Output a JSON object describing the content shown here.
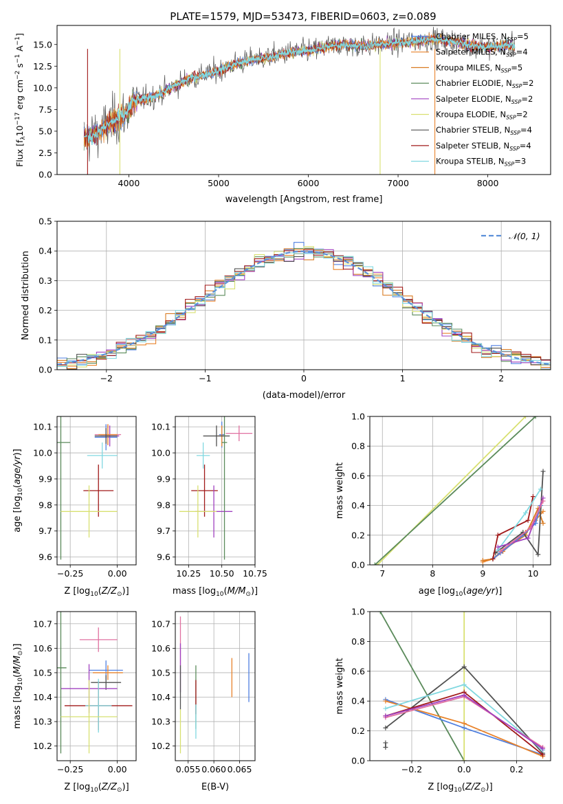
{
  "figure": {
    "title": "PLATE=1579, MJD=53473, FIBERID=0603, z=0.089"
  },
  "legend_entries": [
    {
      "label": "Chabrier MILES, N",
      "nssp": "5",
      "color": "#4f7fe0"
    },
    {
      "label": "Salpeter MILES, N",
      "nssp": "4",
      "color": "#e8822a"
    },
    {
      "label": "Kroupa MILES, N",
      "nssp": "5",
      "color": "#d97a20"
    },
    {
      "label": "Chabrier ELODIE, N",
      "nssp": "2",
      "color": "#5a8a5a"
    },
    {
      "label": "Salpeter ELODIE, N",
      "nssp": "2",
      "color": "#a040c0"
    },
    {
      "label": "Kroupa ELODIE, N",
      "nssp": "2",
      "color": "#d8e070"
    },
    {
      "label": "Chabrier STELIB, N",
      "nssp": "4",
      "color": "#505050"
    },
    {
      "label": "Salpeter STELIB, N",
      "nssp": "4",
      "color": "#a01818"
    },
    {
      "label": "Kroupa STELIB, N",
      "nssp": "3",
      "color": "#80d8e0"
    }
  ],
  "nssp_sub": "SSP",
  "hist_legend": "𝒩(0, 1)",
  "chart_data": [
    {
      "id": "spectrum",
      "type": "line",
      "xlabel": "wavelength [Angstrom, rest frame]",
      "ylabel": "Flux [f",
      "xlim": [
        3200,
        8700
      ],
      "ylim": [
        0,
        17.2
      ],
      "xticks": [
        4000,
        5000,
        6000,
        7000,
        8000
      ],
      "yticks": [
        0.0,
        2.5,
        5.0,
        7.5,
        10.0,
        12.5,
        15.0
      ],
      "knots": [
        [
          3500,
          4.1
        ],
        [
          3650,
          4.8
        ],
        [
          3800,
          6.0
        ],
        [
          3950,
          6.8
        ],
        [
          4050,
          8.5
        ],
        [
          4200,
          8.8
        ],
        [
          4350,
          9.3
        ],
        [
          4500,
          10.2
        ],
        [
          4700,
          11.2
        ],
        [
          4850,
          11.5
        ],
        [
          5000,
          12.0
        ],
        [
          5200,
          12.8
        ],
        [
          5400,
          13.3
        ],
        [
          5600,
          13.6
        ],
        [
          5800,
          14.1
        ],
        [
          6000,
          14.3
        ],
        [
          6200,
          14.7
        ],
        [
          6400,
          15.0
        ],
        [
          6600,
          14.8
        ],
        [
          6800,
          15.0
        ],
        [
          7000,
          15.2
        ],
        [
          7200,
          15.4
        ],
        [
          7400,
          15.6
        ],
        [
          7600,
          15.4
        ],
        [
          7800,
          14.9
        ],
        [
          8000,
          14.7
        ],
        [
          8200,
          14.9
        ],
        [
          8300,
          14.8
        ]
      ]
    },
    {
      "id": "residual_histogram",
      "type": "bar",
      "xlabel": "(data-model)/error",
      "ylabel": "Normed distribution",
      "xlim": [
        -2.5,
        2.5
      ],
      "ylim": [
        0,
        0.5
      ],
      "xticks": [
        -2,
        -1,
        0,
        1,
        2
      ],
      "yticks": [
        0.0,
        0.1,
        0.2,
        0.3,
        0.4,
        0.5
      ],
      "bin_width": 0.1,
      "gaussian": {
        "mean": 0,
        "sigma": 1
      }
    },
    {
      "id": "age_vs_Z",
      "type": "scatter",
      "xlabel": "Z [log",
      "ylabel": "age  [log",
      "xlim": [
        -0.32,
        0.1
      ],
      "ylim": [
        9.57,
        10.14
      ],
      "xticks": [
        -0.25,
        0.0
      ],
      "yticks": [
        9.6,
        9.7,
        9.8,
        9.9,
        10.0,
        10.1
      ],
      "points": [
        {
          "x": -0.05,
          "y": 10.07,
          "xerr": 0.07,
          "yerr": 0.04,
          "color": "#e070a0"
        },
        {
          "x": -0.06,
          "y": 10.06,
          "xerr": 0.06,
          "yerr": 0.05,
          "color": "#4f7fe0"
        },
        {
          "x": -0.04,
          "y": 10.065,
          "xerr": 0.05,
          "yerr": 0.04,
          "color": "#a040c0"
        },
        {
          "x": -0.05,
          "y": 10.07,
          "xerr": 0.05,
          "yerr": 0.04,
          "color": "#e8822a"
        },
        {
          "x": -0.06,
          "y": 10.065,
          "xerr": 0.06,
          "yerr": 0.03,
          "color": "#505050"
        },
        {
          "x": -0.08,
          "y": 9.99,
          "xerr": 0.08,
          "yerr": 0.05,
          "color": "#80d8e0"
        },
        {
          "x": -0.1,
          "y": 9.855,
          "xerr": 0.08,
          "yerr": 0.1,
          "color": "#a01818"
        },
        {
          "x": -0.3,
          "y": 10.04,
          "xerr": 0.05,
          "yerr": 0.45,
          "color": "#5a8a5a"
        },
        {
          "x": -0.15,
          "y": 9.775,
          "xerr": 0.15,
          "yerr": 0.1,
          "color": "#d8e070"
        }
      ]
    },
    {
      "id": "age_vs_mass",
      "type": "scatter",
      "xlabel": "mass [log",
      "ylabel": "",
      "xlim": [
        10.15,
        10.75
      ],
      "ylim": [
        9.57,
        10.14
      ],
      "xticks": [
        10.25,
        10.5,
        10.75
      ],
      "yticks": [
        9.6,
        9.7,
        9.8,
        9.9,
        10.0,
        10.1
      ],
      "points": [
        {
          "x": 10.63,
          "y": 10.075,
          "xerr": 0.1,
          "yerr": 0.03,
          "color": "#e070a0"
        },
        {
          "x": 10.5,
          "y": 10.07,
          "xerr": 0.02,
          "yerr": 0.05,
          "color": "#4f7fe0"
        },
        {
          "x": 10.5,
          "y": 10.065,
          "xerr": 0.03,
          "yerr": 0.04,
          "color": "#e8822a"
        },
        {
          "x": 10.46,
          "y": 10.065,
          "xerr": 0.1,
          "yerr": 0.04,
          "color": "#505050"
        },
        {
          "x": 10.36,
          "y": 9.99,
          "xerr": 0.05,
          "yerr": 0.05,
          "color": "#80d8e0"
        },
        {
          "x": 10.37,
          "y": 9.855,
          "xerr": 0.1,
          "yerr": 0.1,
          "color": "#a01818"
        },
        {
          "x": 10.44,
          "y": 9.775,
          "xerr": 0.14,
          "yerr": 0.1,
          "color": "#a040c0"
        },
        {
          "x": 10.32,
          "y": 9.775,
          "xerr": 0.14,
          "yerr": 0.1,
          "color": "#d8e070"
        },
        {
          "x": 10.52,
          "y": 10.04,
          "xerr": 0.02,
          "yerr": 0.45,
          "color": "#5a8a5a"
        }
      ]
    },
    {
      "id": "mass_weight_vs_age",
      "type": "line",
      "xlabel": "age  [log",
      "ylabel": "mass weight",
      "xlim": [
        6.75,
        10.35
      ],
      "ylim": [
        0,
        1.0
      ],
      "xticks": [
        7,
        8,
        9,
        10
      ],
      "yticks": [
        0.0,
        0.2,
        0.4,
        0.6,
        0.8,
        1.0
      ],
      "series": [
        {
          "color": "#d8e070",
          "x": [
            6.9,
            9.85
          ],
          "y": [
            0.0,
            1.0
          ]
        },
        {
          "color": "#5a8a5a",
          "x": [
            6.85,
            10.05
          ],
          "y": [
            0.0,
            1.0
          ]
        },
        {
          "color": "#e8822a",
          "x": [
            9.0,
            9.2,
            9.4,
            9.85,
            10.05,
            10.2
          ],
          "y": [
            0.02,
            0.04,
            0.09,
            0.22,
            0.3,
            0.36
          ]
        },
        {
          "color": "#d97a20",
          "x": [
            9.0,
            9.2,
            9.4,
            9.85,
            10.1,
            10.2
          ],
          "y": [
            0.03,
            0.04,
            0.1,
            0.2,
            0.38,
            0.28
          ]
        },
        {
          "color": "#4f7fe0",
          "x": [
            9.2,
            9.35,
            9.8,
            10.05,
            10.15
          ],
          "y": [
            0.04,
            0.08,
            0.2,
            0.28,
            0.4
          ]
        },
        {
          "color": "#505050",
          "x": [
            9.25,
            9.8,
            10.1,
            10.2
          ],
          "y": [
            0.08,
            0.22,
            0.07,
            0.63
          ]
        },
        {
          "color": "#a01818",
          "x": [
            9.2,
            9.3,
            9.9,
            10.0
          ],
          "y": [
            0.04,
            0.2,
            0.3,
            0.46
          ]
        },
        {
          "color": "#80d8e0",
          "x": [
            9.3,
            9.85,
            10.15
          ],
          "y": [
            0.1,
            0.35,
            0.51
          ]
        },
        {
          "color": "#a040c0",
          "x": [
            9.3,
            9.9,
            10.2
          ],
          "y": [
            0.12,
            0.18,
            0.45
          ]
        },
        {
          "color": "#e070a0",
          "x": [
            9.35,
            9.95,
            10.2
          ],
          "y": [
            0.09,
            0.25,
            0.43
          ]
        }
      ]
    },
    {
      "id": "mass_vs_Z",
      "type": "scatter",
      "xlabel": "Z [log",
      "ylabel": "mass [log",
      "xlim": [
        -0.32,
        0.1
      ],
      "ylim": [
        10.14,
        10.75
      ],
      "xticks": [
        -0.25,
        0.0
      ],
      "yticks": [
        10.2,
        10.3,
        10.4,
        10.5,
        10.6,
        10.7
      ],
      "points": [
        {
          "x": -0.1,
          "y": 10.635,
          "xerr": 0.1,
          "yerr": 0.05,
          "color": "#e070a0"
        },
        {
          "x": -0.06,
          "y": 10.51,
          "xerr": 0.09,
          "yerr": 0.04,
          "color": "#4f7fe0"
        },
        {
          "x": -0.05,
          "y": 10.5,
          "xerr": 0.08,
          "yerr": 0.03,
          "color": "#e8822a"
        },
        {
          "x": -0.06,
          "y": 10.46,
          "xerr": 0.08,
          "yerr": 0.03,
          "color": "#505050"
        },
        {
          "x": -0.15,
          "y": 10.435,
          "xerr": 0.15,
          "yerr": 0.1,
          "color": "#a040c0"
        },
        {
          "x": -0.1,
          "y": 10.365,
          "xerr": 0.18,
          "yerr": 0.1,
          "color": "#a01818"
        },
        {
          "x": -0.1,
          "y": 10.365,
          "xerr": 0.07,
          "yerr": 0.11,
          "color": "#80d8e0"
        },
        {
          "x": -0.3,
          "y": 10.52,
          "xerr": 0.03,
          "yerr": 0.35,
          "color": "#5a8a5a"
        },
        {
          "x": -0.15,
          "y": 10.32,
          "xerr": 0.15,
          "yerr": 0.15,
          "color": "#d8e070"
        }
      ]
    },
    {
      "id": "mass_vs_ebv",
      "type": "scatter",
      "xlabel": "E(B-V)",
      "ylabel": "",
      "xlim": [
        0.0525,
        0.068
      ],
      "ylim": [
        10.14,
        10.75
      ],
      "xticks": [
        0.055,
        0.06,
        0.065
      ],
      "yticks": [
        10.2,
        10.3,
        10.4,
        10.5,
        10.6,
        10.7
      ],
      "points": [
        {
          "x": 0.0535,
          "y": 10.63,
          "xerr": 0,
          "yerr": 0.1,
          "color": "#e070a0"
        },
        {
          "x": 0.0535,
          "y": 10.52,
          "xerr": 0,
          "yerr": 0.1,
          "color": "#a040c0"
        },
        {
          "x": 0.0535,
          "y": 10.44,
          "xerr": 0,
          "yerr": 0.09,
          "color": "#505050"
        },
        {
          "x": 0.0535,
          "y": 10.26,
          "xerr": 0,
          "yerr": 0.09,
          "color": "#d8e070"
        },
        {
          "x": 0.0565,
          "y": 10.4,
          "xerr": 0,
          "yerr": 0.13,
          "color": "#5a8a5a"
        },
        {
          "x": 0.0565,
          "y": 10.4,
          "xerr": 0,
          "yerr": 0.07,
          "color": "#a01818"
        },
        {
          "x": 0.0565,
          "y": 10.3,
          "xerr": 0,
          "yerr": 0.07,
          "color": "#80d8e0"
        },
        {
          "x": 0.0635,
          "y": 10.48,
          "xerr": 0,
          "yerr": 0.08,
          "color": "#e8822a"
        },
        {
          "x": 0.0668,
          "y": 10.48,
          "xerr": 0,
          "yerr": 0.1,
          "color": "#4f7fe0"
        }
      ]
    },
    {
      "id": "mass_weight_vs_Z",
      "type": "line",
      "xlabel": "Z [log",
      "ylabel": "mass weight",
      "xlim": [
        -0.36,
        0.33
      ],
      "ylim": [
        0,
        1.0
      ],
      "xticks": [
        -0.2,
        0.0,
        0.2
      ],
      "yticks": [
        0.0,
        0.2,
        0.4,
        0.6,
        0.8,
        1.0
      ],
      "series": [
        {
          "color": "#5a8a5a",
          "x": [
            -0.32,
            0.0
          ],
          "y": [
            1.0,
            0.0
          ]
        },
        {
          "color": "#d8e070",
          "x": [
            0.0,
            0.0
          ],
          "y": [
            0.0,
            1.0
          ]
        },
        {
          "color": "#4f7fe0",
          "x": [
            -0.3,
            0.0,
            0.3
          ],
          "y": [
            0.41,
            0.22,
            0.04
          ]
        },
        {
          "color": "#e8822a",
          "x": [
            -0.3,
            0.0,
            0.3
          ],
          "y": [
            0.4,
            0.25,
            0.03
          ]
        },
        {
          "color": "#505050",
          "x": [
            -0.3,
            0.0,
            0.3
          ],
          "y": [
            0.22,
            0.63,
            0.05
          ]
        },
        {
          "color": "#a01818",
          "x": [
            -0.3,
            0.0,
            0.3
          ],
          "y": [
            0.3,
            0.46,
            0.04
          ]
        },
        {
          "color": "#80d8e0",
          "x": [
            -0.3,
            0.0,
            0.3
          ],
          "y": [
            0.35,
            0.51,
            0.07
          ]
        },
        {
          "color": "#e070a0",
          "x": [
            -0.3,
            0.0,
            0.3
          ],
          "y": [
            0.29,
            0.43,
            0.09
          ]
        },
        {
          "color": "#a040c0",
          "x": [
            -0.3,
            0.0,
            0.3
          ],
          "y": [
            0.3,
            0.44,
            0.08
          ]
        },
        {
          "color": "#505050",
          "x": [
            -0.3,
            -0.3
          ],
          "y": [
            0.09,
            0.12
          ]
        }
      ]
    }
  ]
}
